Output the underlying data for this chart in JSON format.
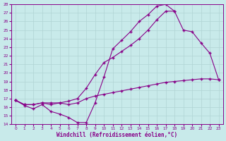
{
  "xlabel": "Windchill (Refroidissement éolien,°C)",
  "ylabel": "",
  "xlim": [
    -0.5,
    23.5
  ],
  "ylim": [
    14,
    28
  ],
  "xticks": [
    0,
    1,
    2,
    3,
    4,
    5,
    6,
    7,
    8,
    9,
    10,
    11,
    12,
    13,
    14,
    15,
    16,
    17,
    18,
    19,
    20,
    21,
    22,
    23
  ],
  "yticks": [
    14,
    15,
    16,
    17,
    18,
    19,
    20,
    21,
    22,
    23,
    24,
    25,
    26,
    27,
    28
  ],
  "bg_color": "#c8eaea",
  "grid_color": "#b0d4d4",
  "line_color": "#880088",
  "line1_x": [
    0,
    1,
    2,
    3,
    4,
    5,
    6,
    7,
    8,
    9,
    10,
    11,
    12,
    13,
    14,
    15,
    16,
    17,
    18
  ],
  "line1_y": [
    16.8,
    16.2,
    15.8,
    16.3,
    15.5,
    15.2,
    14.8,
    14.2,
    14.2,
    16.5,
    19.5,
    22.8,
    23.8,
    24.8,
    26.0,
    26.8,
    27.8,
    28.0,
    27.2
  ],
  "line2_x": [
    0,
    1,
    2,
    3,
    4,
    5,
    6,
    7,
    8,
    9,
    10,
    11,
    12,
    13,
    14,
    15,
    16,
    17,
    18,
    19,
    20,
    21,
    22,
    23
  ],
  "line2_y": [
    16.8,
    16.3,
    16.3,
    16.5,
    16.3,
    16.5,
    16.3,
    16.5,
    17.0,
    17.3,
    17.5,
    17.7,
    17.9,
    18.1,
    18.3,
    18.5,
    18.7,
    18.9,
    19.0,
    19.1,
    19.2,
    19.3,
    19.3,
    19.2
  ],
  "line3_x": [
    0,
    1,
    2,
    3,
    4,
    5,
    6,
    7,
    8,
    9,
    10,
    11,
    12,
    13,
    14,
    15,
    16,
    17,
    18,
    19,
    20,
    21,
    22,
    23
  ],
  "line3_y": [
    16.8,
    16.3,
    16.3,
    16.5,
    16.5,
    16.5,
    16.7,
    17.0,
    18.2,
    19.8,
    21.2,
    21.8,
    22.5,
    23.2,
    24.0,
    25.0,
    26.2,
    27.2,
    27.2,
    25.0,
    24.8,
    23.5,
    22.3,
    19.2
  ]
}
